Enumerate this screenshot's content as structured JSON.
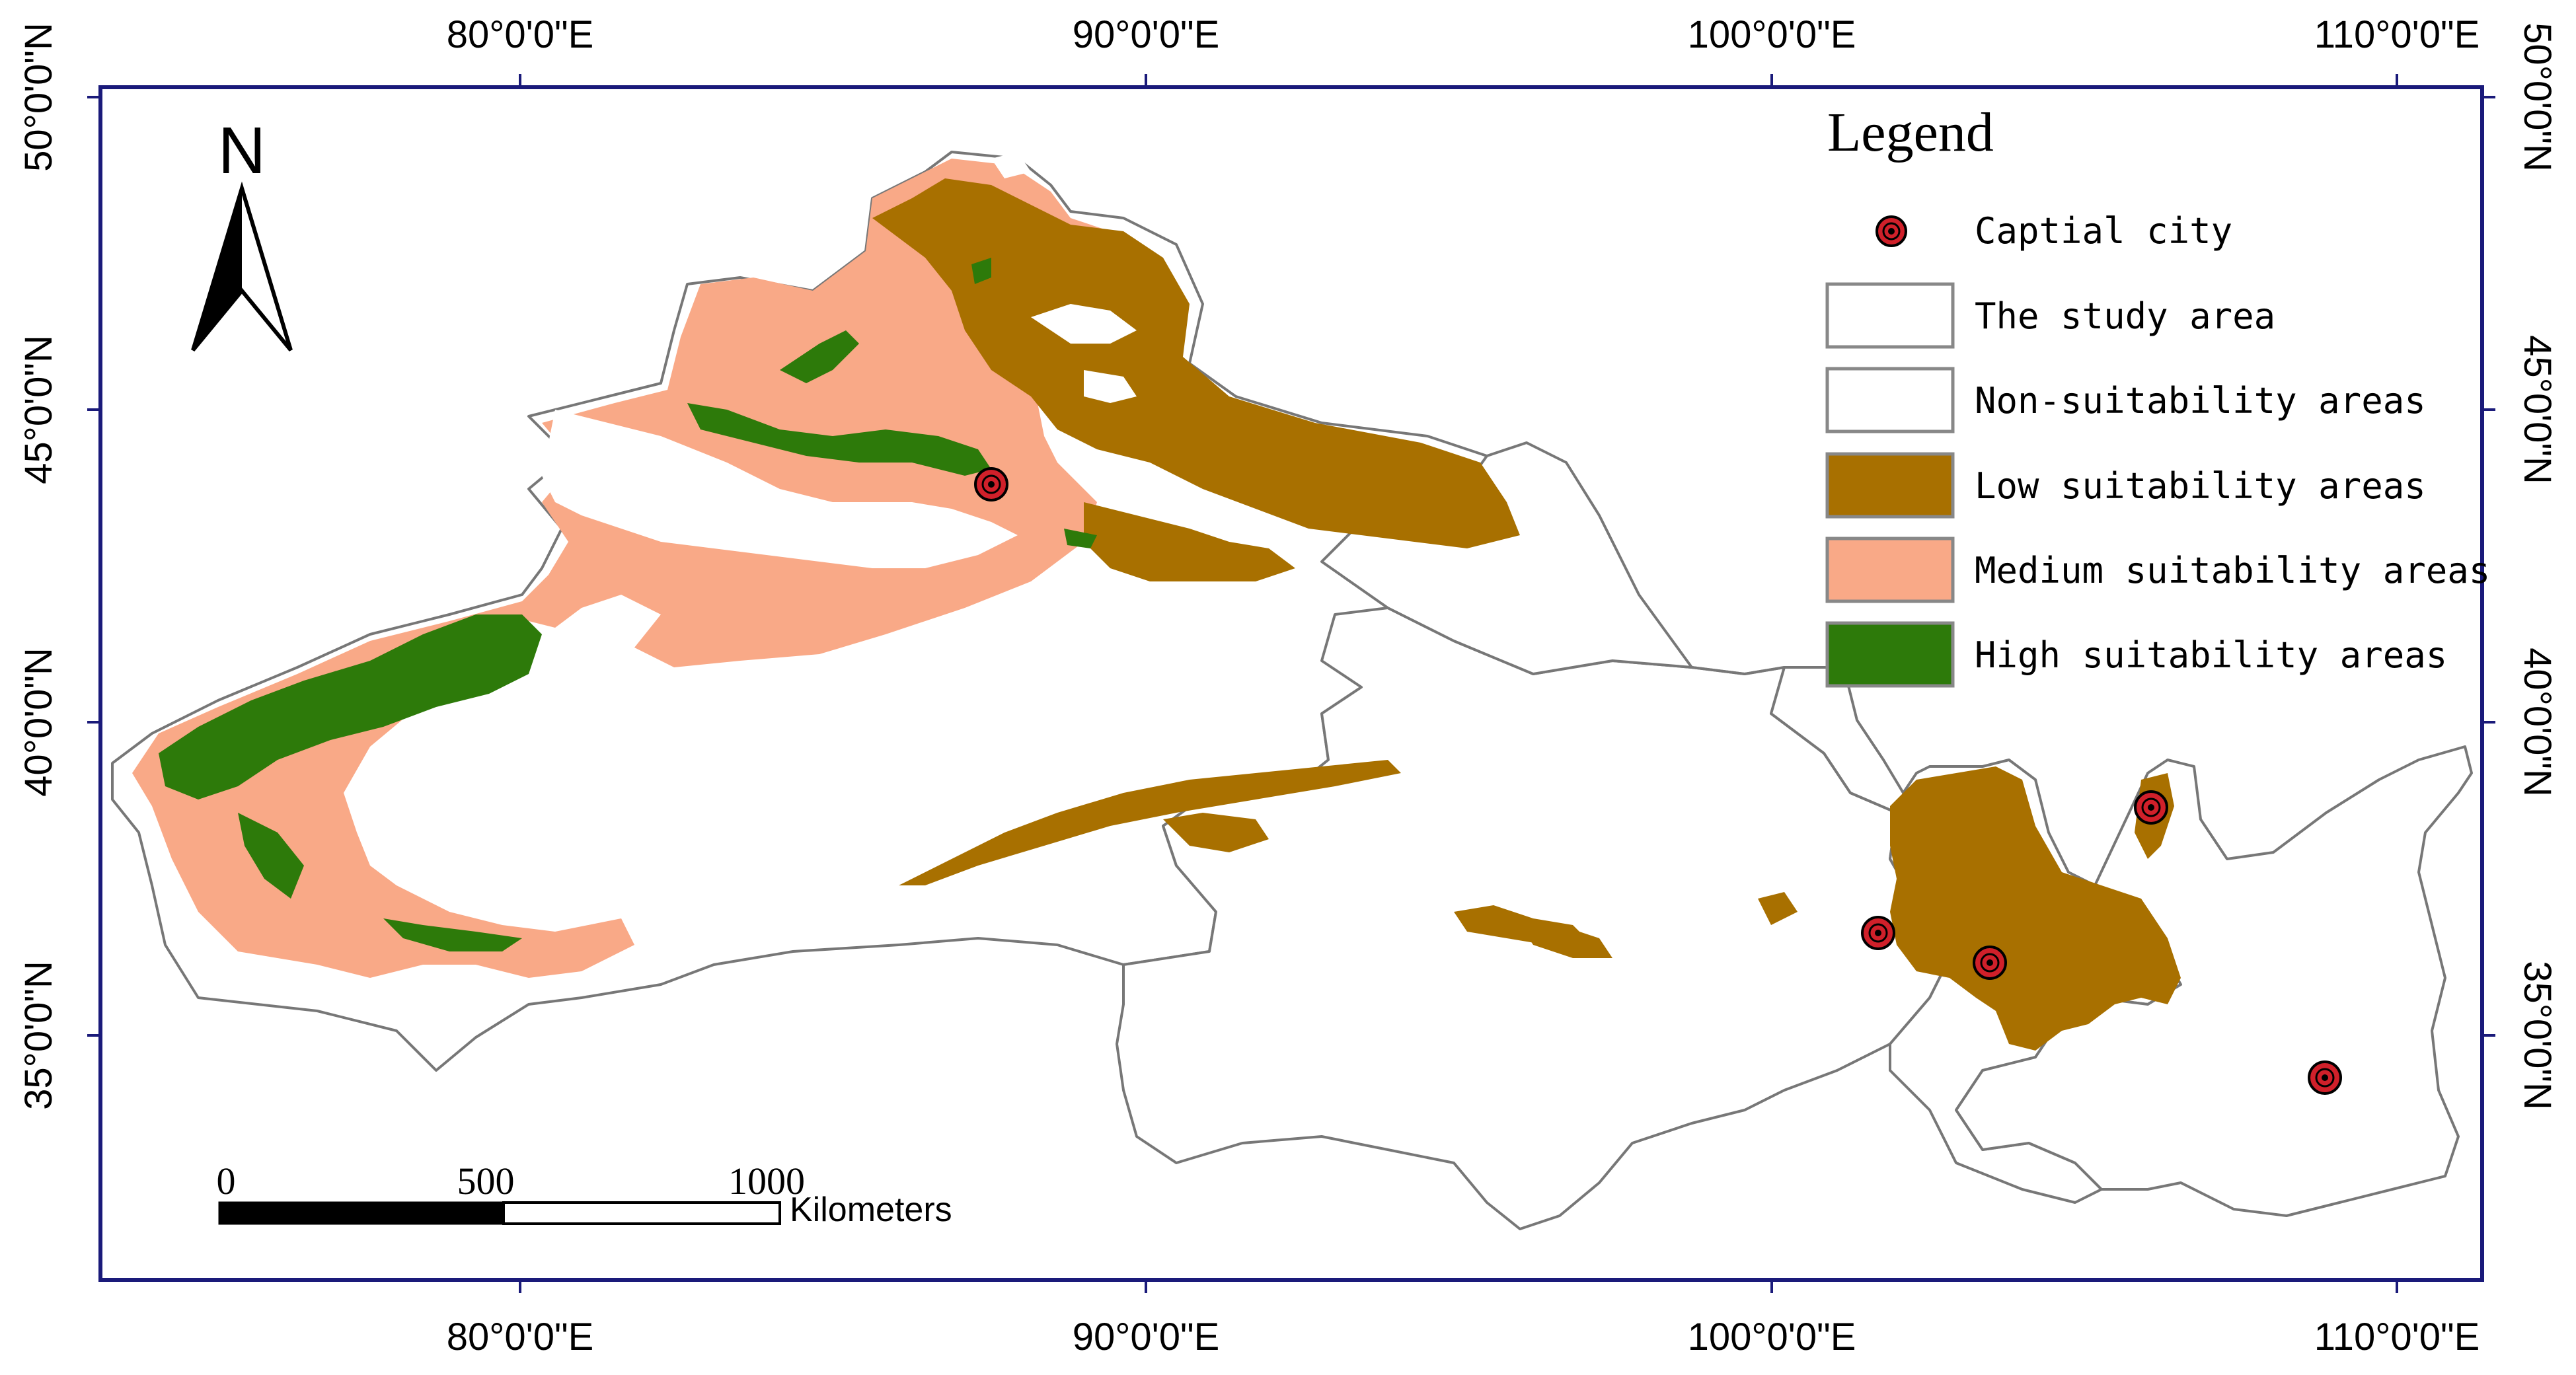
{
  "map": {
    "top_axis": [
      "80°0'0\"E",
      "90°0'0\"E",
      "100°0'0\"E",
      "110°0'0\"E"
    ],
    "bottom_axis": [
      "80°0'0\"E",
      "90°0'0\"E",
      "100°0'0\"E",
      "110°0'0\"E"
    ],
    "left_axis": [
      "50°0'0\"N",
      "45°0'0\"N",
      "40°0'0\"N",
      "35°0'0\"N"
    ],
    "right_axis": [
      "50°0'0\"N",
      "45°0'0\"N",
      "40°0'0\"N",
      "35°0'0\"N"
    ]
  },
  "north_arrow": {
    "label": "N"
  },
  "scale_bar": {
    "ticks": [
      "0",
      "500",
      "1000"
    ],
    "unit": "Kilometers"
  },
  "legend": {
    "title": "Legend",
    "items": [
      {
        "label": "Captial city",
        "symbol": "city-marker"
      },
      {
        "label": "The study area",
        "color": "#ffffff"
      },
      {
        "label": "Non-suitability areas",
        "color": "#ffffff"
      },
      {
        "label": "Low suitability areas",
        "color": "#a87000"
      },
      {
        "label": "Medium suitability areas",
        "color": "#f9a987"
      },
      {
        "label": "High suitability areas",
        "color": "#2d7a0a"
      }
    ]
  },
  "colors": {
    "frame": "#1a1a7a",
    "boundary": "#777777",
    "low": "#a87000",
    "medium": "#f9a987",
    "high": "#2d7a0a",
    "city_fill": "#d0202a"
  }
}
